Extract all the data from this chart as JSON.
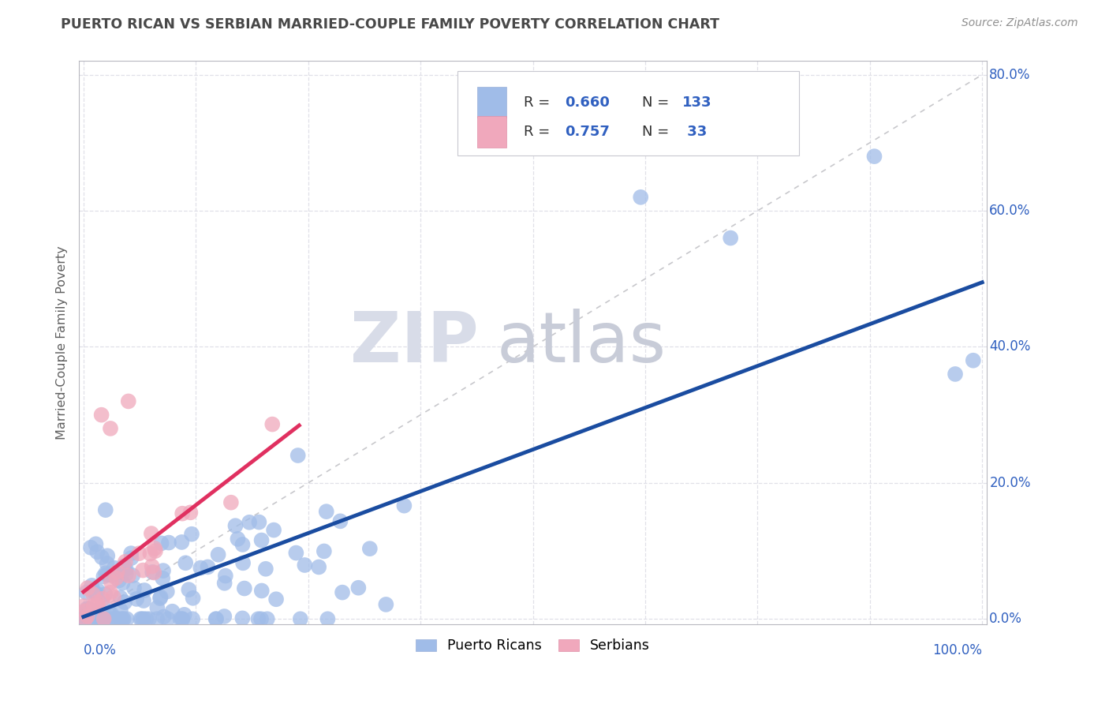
{
  "title": "PUERTO RICAN VS SERBIAN MARRIED-COUPLE FAMILY POVERTY CORRELATION CHART",
  "source": "Source: ZipAtlas.com",
  "ylabel": "Married-Couple Family Poverty",
  "legend_label1": "Puerto Ricans",
  "legend_label2": "Serbians",
  "watermark_zip": "ZIP",
  "watermark_atlas": "atlas",
  "r1": 0.66,
  "n1": 133,
  "r2": 0.757,
  "n2": 33,
  "blue_scatter": "#a0bce8",
  "pink_scatter": "#f0a8bc",
  "blue_line": "#1a4ca0",
  "pink_line": "#e03060",
  "diag_color": "#c8c8cc",
  "grid_color": "#e0e0e8",
  "title_color": "#484848",
  "axis_pct_color": "#3060c0",
  "ylabel_color": "#606060",
  "source_color": "#909090",
  "watermark_zip_color": "#d8dce8",
  "watermark_atlas_color": "#c8ccd8",
  "bg_color": "#ffffff",
  "xlim_min": -0.005,
  "xlim_max": 1.005,
  "ylim_min": -0.008,
  "ylim_max": 0.82,
  "ytick_vals": [
    0.0,
    0.2,
    0.4,
    0.6,
    0.8
  ],
  "ytick_labels": [
    "0.0%",
    "20.0%",
    "40.0%",
    "60.0%",
    "80.0%"
  ],
  "xtick_vals": [
    0.0,
    0.125,
    0.25,
    0.375,
    0.5,
    0.625,
    0.75,
    0.875,
    1.0
  ]
}
